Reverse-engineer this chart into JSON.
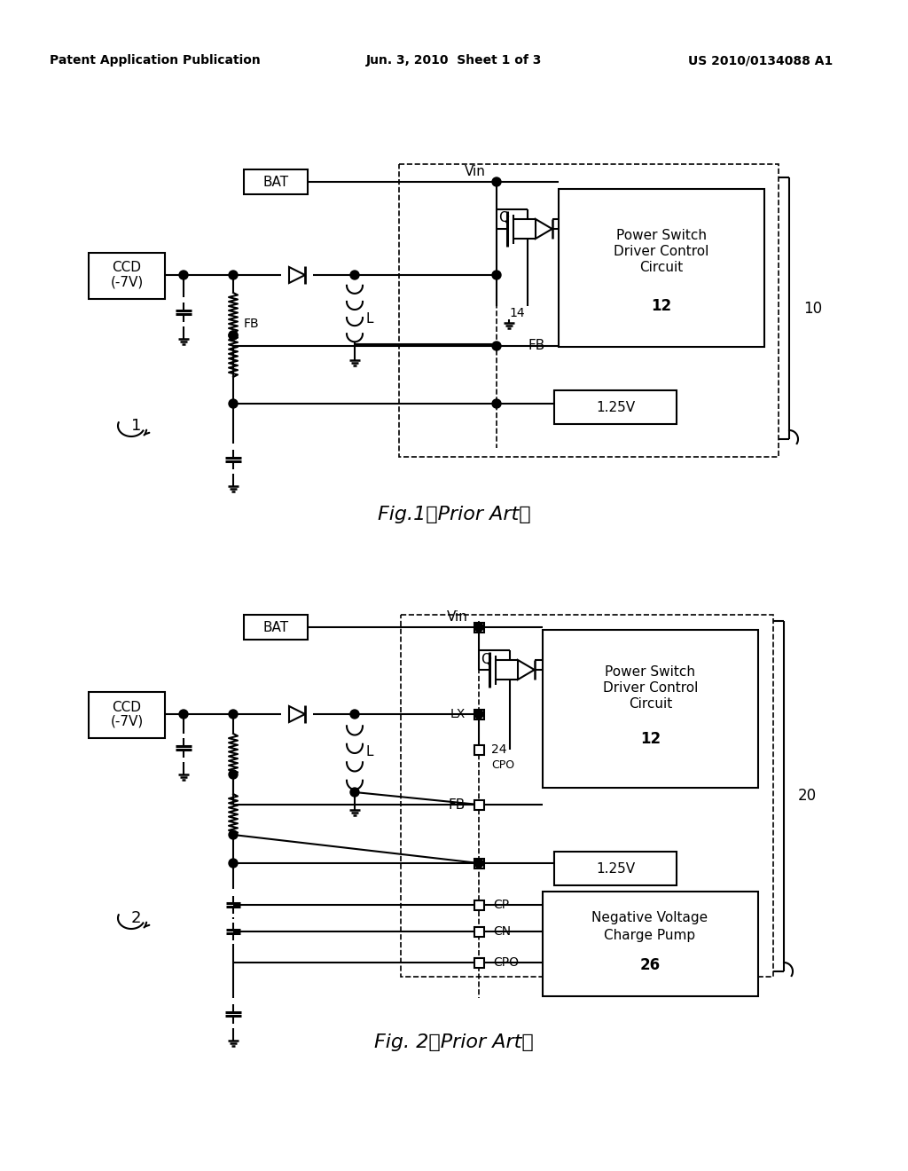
{
  "header_left": "Patent Application Publication",
  "header_center": "Jun. 3, 2010  Sheet 1 of 3",
  "header_right": "US 2010/0134088 A1",
  "fig1_caption": "Fig.1（Prior Art）",
  "fig2_caption": "Fig. 2（Prior Art）",
  "background_color": "#ffffff"
}
